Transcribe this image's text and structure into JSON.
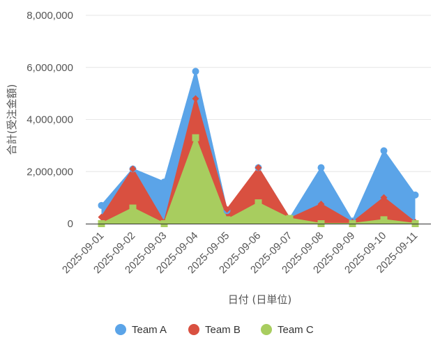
{
  "chart_data": {
    "type": "area",
    "stacking": "none",
    "categories": [
      "2025-09-01",
      "2025-09-02",
      "2025-09-03",
      "2025-09-04",
      "2025-09-05",
      "2025-09-06",
      "2025-09-07",
      "2025-09-08",
      "2025-09-09",
      "2025-09-10",
      "2025-09-11"
    ],
    "series": [
      {
        "name": "Team A",
        "color": "#5ba4e8",
        "marker": "circle",
        "values": [
          700000,
          2100000,
          1600000,
          5850000,
          500000,
          2150000,
          200000,
          2150000,
          100000,
          2800000,
          1100000
        ]
      },
      {
        "name": "Team B",
        "color": "#d95040",
        "marker": "diamond",
        "values": [
          250000,
          2100000,
          50000,
          4800000,
          550000,
          2150000,
          200000,
          750000,
          50000,
          1000000,
          50000
        ]
      },
      {
        "name": "Team C",
        "color": "#a8cd5f",
        "marker": "square",
        "values": [
          0,
          600000,
          0,
          3300000,
          150000,
          800000,
          200000,
          0,
          0,
          150000,
          0
        ]
      }
    ],
    "ylim": [
      0,
      8000000
    ],
    "yticks": [
      0,
      2000000,
      4000000,
      6000000,
      8000000
    ],
    "ytick_labels": [
      "0",
      "2,000,000",
      "4,000,000",
      "6,000,000",
      "8,000,000"
    ],
    "xlabel": "日付 (日単位)",
    "ylabel": "合計(受注金額)",
    "grid": true,
    "legend_position": "bottom"
  }
}
